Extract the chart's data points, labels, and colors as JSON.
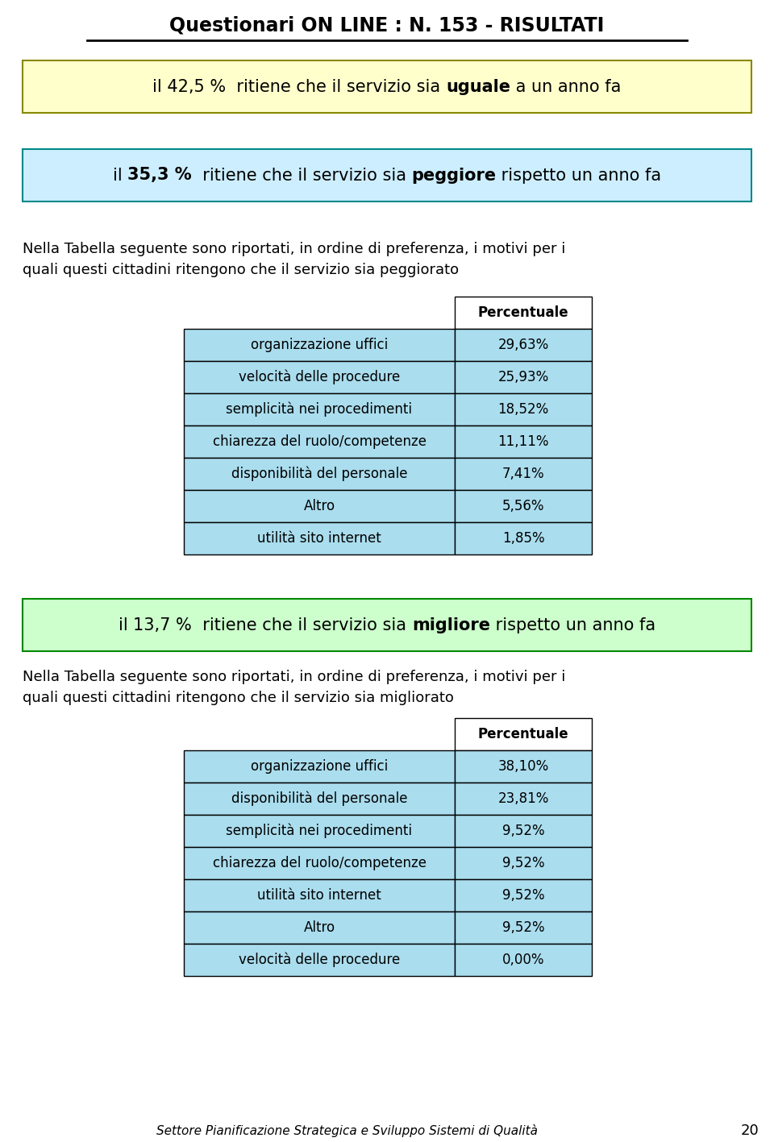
{
  "title": "Questionari ON LINE : N. 153 - RISULTATI",
  "bg_color": "#ffffff",
  "box1_bg": "#ffffcc",
  "box2_bg": "#cceeff",
  "box3_bg": "#ccffcc",
  "table_bg": "#aaddee",
  "table_header_bg": "#ffffff",
  "table1_rows": [
    [
      "organizzazione uffici",
      "29,63%"
    ],
    [
      "velocità delle procedure",
      "25,93%"
    ],
    [
      "semplicità nei procedimenti",
      "18,52%"
    ],
    [
      "chiarezza del ruolo/competenze",
      "11,11%"
    ],
    [
      "disponibilità del personale",
      "7,41%"
    ],
    [
      "Altro",
      "5,56%"
    ],
    [
      "utilità sito internet",
      "1,85%"
    ]
  ],
  "table2_rows": [
    [
      "organizzazione uffici",
      "38,10%"
    ],
    [
      "disponibilità del personale",
      "23,81%"
    ],
    [
      "semplicità nei procedimenti",
      "9,52%"
    ],
    [
      "chiarezza del ruolo/competenze",
      "9,52%"
    ],
    [
      "utilità sito internet",
      "9,52%"
    ],
    [
      "Altro",
      "9,52%"
    ],
    [
      "velocità delle procedure",
      "0,00%"
    ]
  ],
  "footer_text": "Settore Pianificazione Strategica e Sviluppo Sistemi di Qualità",
  "footer_page": "20"
}
